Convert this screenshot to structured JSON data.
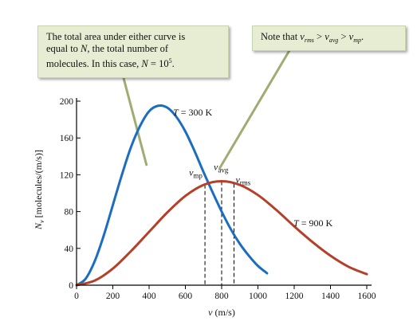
{
  "chart_data": {
    "type": "line",
    "xlabel": "v (m/s)",
    "ylabel": "N_v [molecules/(m/s)]",
    "xlim": [
      0,
      1600
    ],
    "ylim": [
      0,
      200
    ],
    "x_ticks": [
      "0",
      "200",
      "400",
      "600",
      "800",
      "1000",
      "1200",
      "1400",
      "1600"
    ],
    "y_ticks": [
      "0",
      "40",
      "80",
      "120",
      "160",
      "200"
    ],
    "grid": false,
    "series": [
      {
        "name": "T = 300 K",
        "color": "#1b6dbf",
        "x": [
          0,
          50,
          100,
          150,
          200,
          250,
          300,
          350,
          400,
          450,
          500,
          550,
          600,
          650,
          700,
          750,
          800,
          850,
          900,
          950,
          1000,
          1050
        ],
        "y": [
          0,
          7,
          26,
          54,
          87,
          120,
          150,
          173,
          189,
          195,
          193,
          183,
          167,
          146,
          123,
          101,
          80,
          61,
          45,
          32,
          21,
          13
        ]
      },
      {
        "name": "T = 900 K",
        "color": "#b5402a",
        "x": [
          0,
          100,
          200,
          300,
          400,
          500,
          600,
          700,
          800,
          900,
          1000,
          1100,
          1200,
          1300,
          1400,
          1500,
          1600
        ],
        "y": [
          0,
          5,
          18,
          37,
          58,
          79,
          97,
          109,
          113,
          109,
          98,
          82,
          64,
          47,
          32,
          20,
          12
        ]
      }
    ],
    "markers": [
      {
        "label": "v",
        "sub": "mp",
        "x": 708
      },
      {
        "label": "v",
        "sub": "avg",
        "x": 800
      },
      {
        "label": "v",
        "sub": "rms",
        "x": 868
      }
    ],
    "annotations": [
      {
        "text": "T = 300 K"
      },
      {
        "text": "T = 900 K"
      }
    ]
  },
  "callouts": {
    "left": {
      "line1": "The total area under either curve is",
      "line2a": "equal to ",
      "line2_var": "N",
      "line2b": ", the total number of",
      "line3a": "molecules. In this case, ",
      "line3_var": "N",
      "line3b": " = 10",
      "line3_exp": "5",
      "line3_end": "."
    },
    "right": {
      "prefix": "Note that ",
      "v1": "v",
      "v1_sub": "rms",
      "gt1": " > ",
      "v2": "v",
      "v2_sub": "avg",
      "gt2": " > ",
      "v3": "v",
      "v3_sub": "mp",
      "suffix": "."
    }
  },
  "colors": {
    "axis": "#000000",
    "callout_bg": "#e6edd3",
    "pointer": "#9fad72",
    "marker_line": "#000000"
  }
}
